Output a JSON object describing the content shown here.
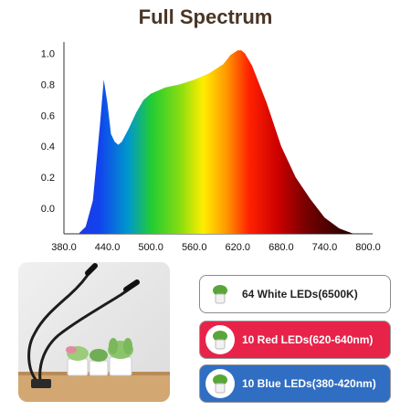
{
  "chart_data": {
    "type": "area",
    "title": "Full Spectrum",
    "xlabel": "",
    "ylabel": "",
    "xlim": [
      380,
      800
    ],
    "ylim": [
      -0.2,
      1.1
    ],
    "x_ticks": [
      "380.0",
      "440.0",
      "500.0",
      "560.0",
      "620.0",
      "680.0",
      "740.0",
      "800.0"
    ],
    "y_ticks": [
      "1.0",
      "0.8",
      "0.6",
      "0.4",
      "0.2",
      "0.0"
    ],
    "grid": false,
    "fill": "wavelength-gradient",
    "series": [
      {
        "x": [
          400,
          410,
          420,
          430,
          435,
          440,
          445,
          450,
          455,
          460,
          470,
          480,
          490,
          500,
          520,
          540,
          560,
          580,
          600,
          610,
          620,
          625,
          630,
          640,
          660,
          680,
          700,
          720,
          740,
          760,
          780,
          800
        ],
        "values": [
          -0.2,
          -0.12,
          0.05,
          0.55,
          0.83,
          0.68,
          0.48,
          0.43,
          0.41,
          0.43,
          0.52,
          0.62,
          0.7,
          0.74,
          0.78,
          0.8,
          0.83,
          0.87,
          0.93,
          0.99,
          1.02,
          1.02,
          1.0,
          0.92,
          0.68,
          0.4,
          0.2,
          0.06,
          -0.06,
          -0.13,
          -0.18,
          -0.2
        ]
      }
    ]
  },
  "badges": [
    {
      "label": "64 White LEDs(6500K)"
    },
    {
      "label": "10 Red LEDs(620-640nm)"
    },
    {
      "label": "10 Blue LEDs(380-420nm)"
    }
  ]
}
